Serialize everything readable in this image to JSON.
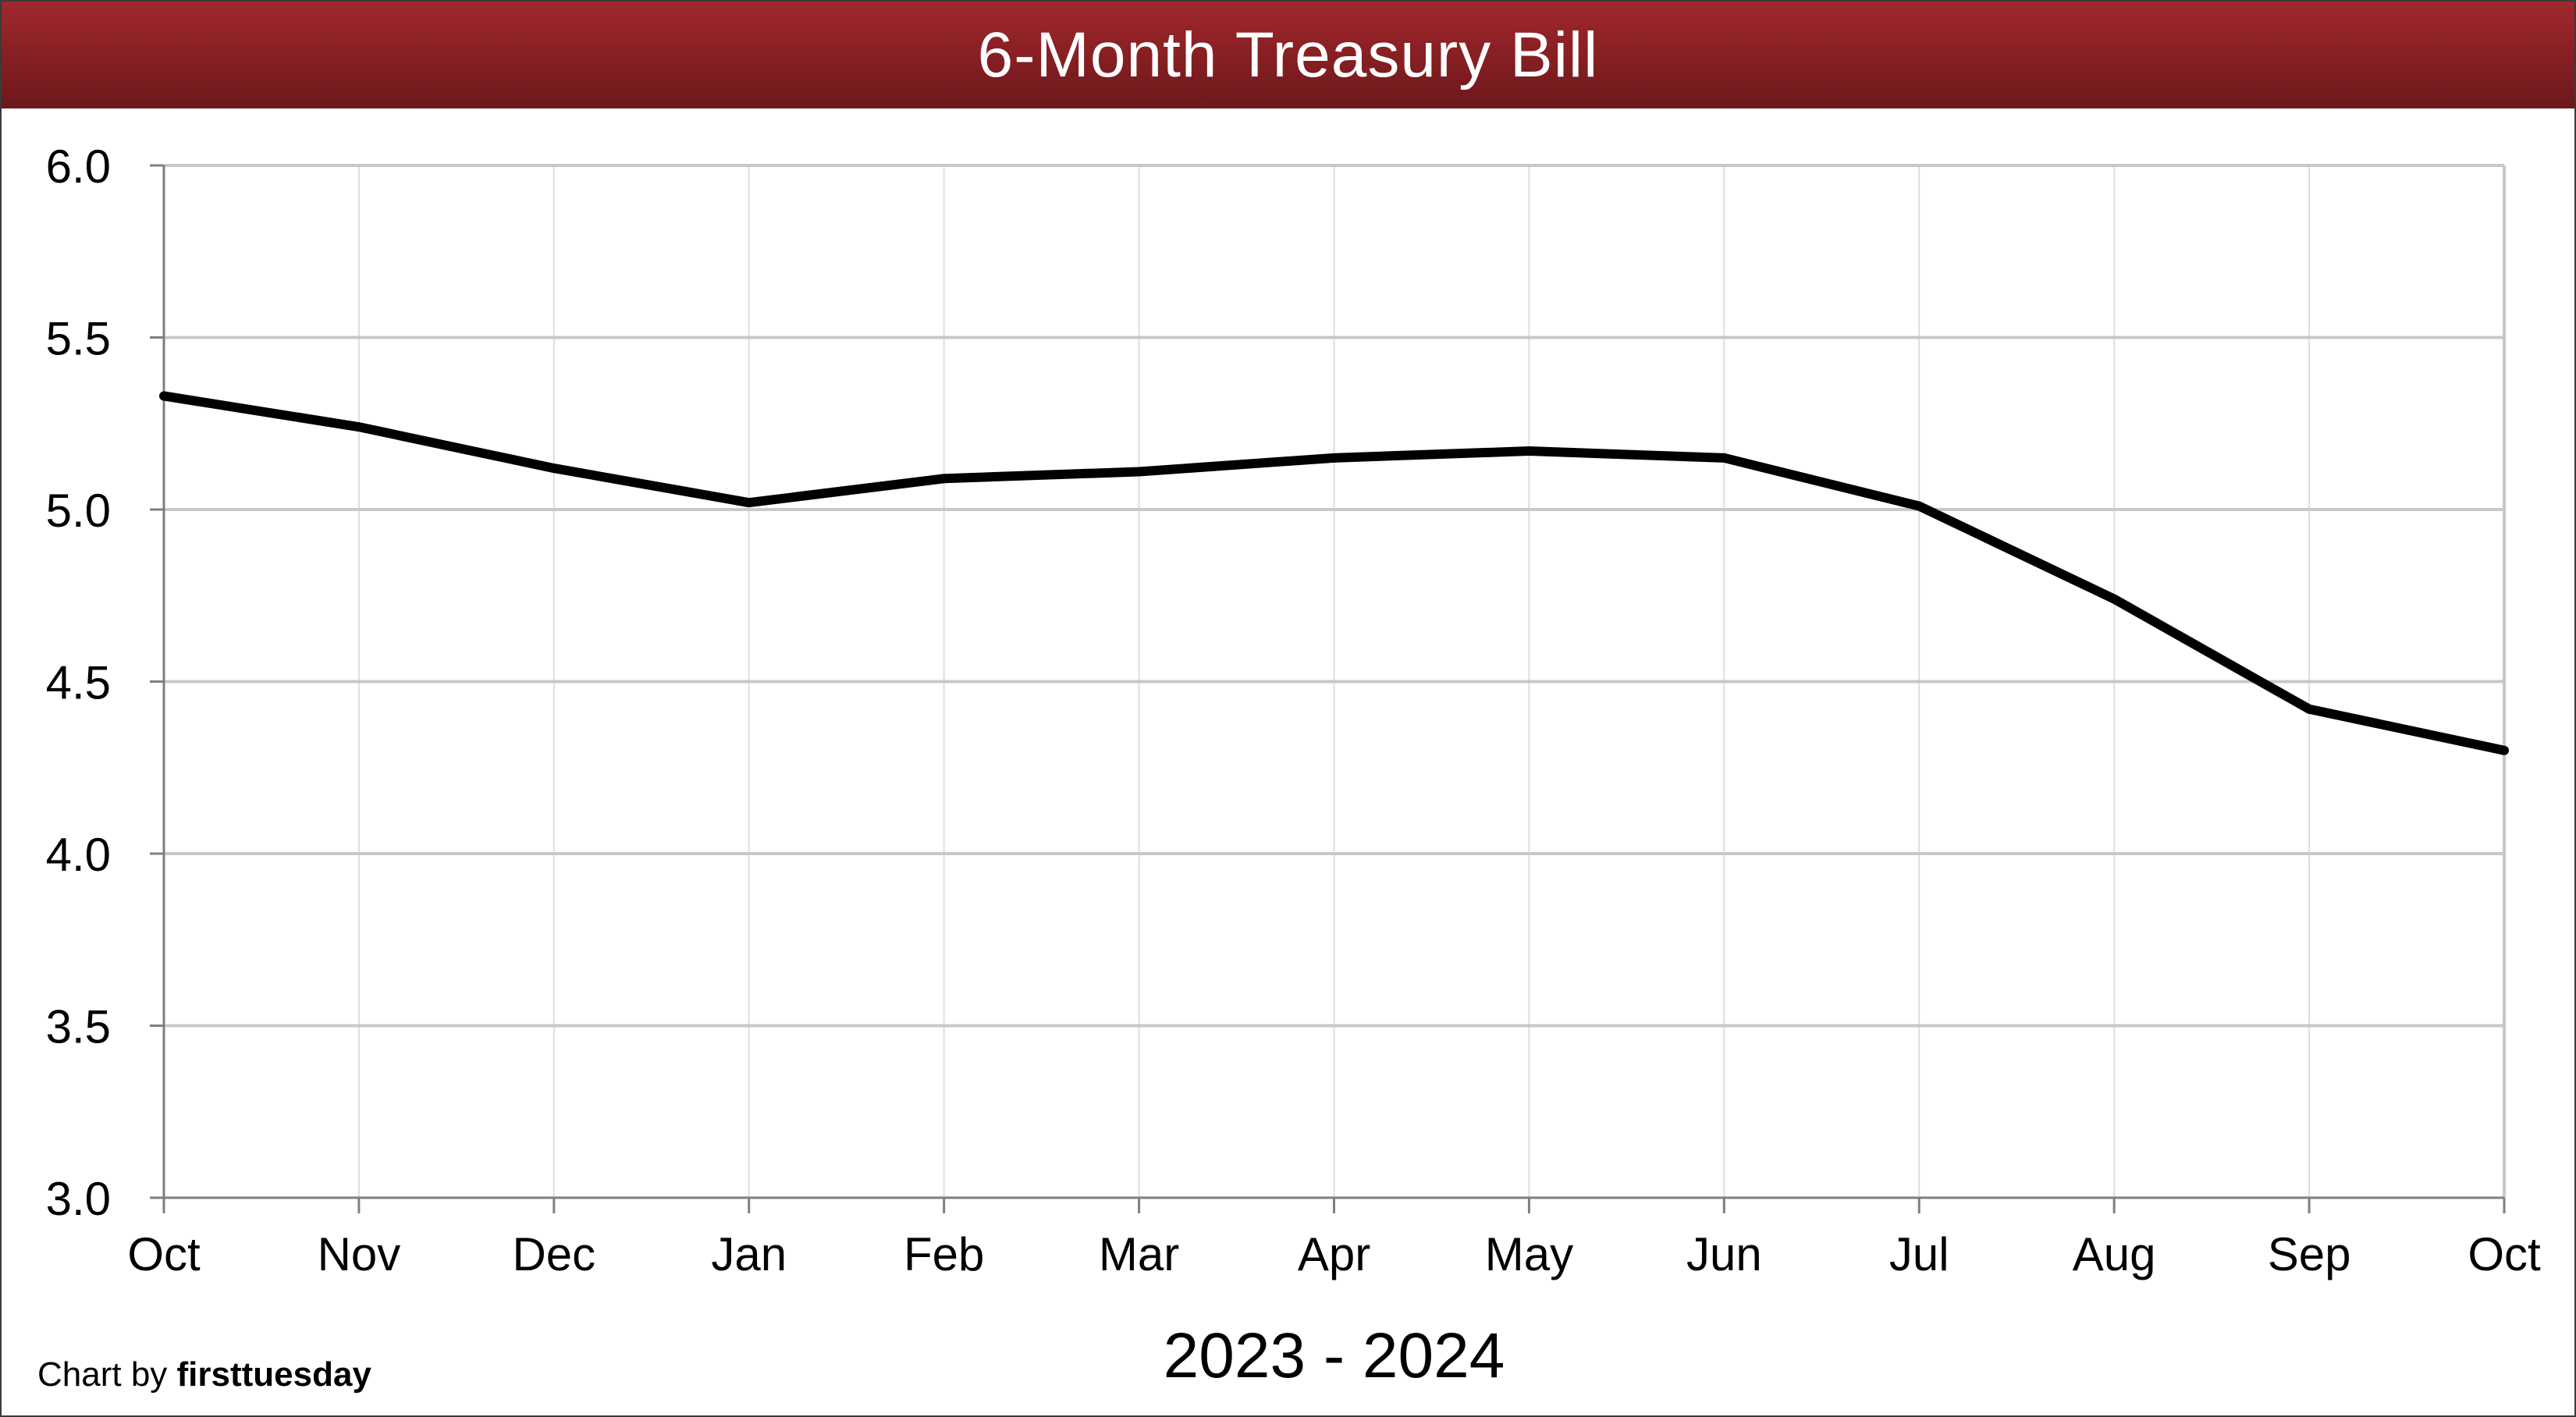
{
  "header": {
    "title": "6-Month Treasury Bill"
  },
  "footer": {
    "credit_prefix": "Chart by",
    "credit_brand": "firsttuesday"
  },
  "colors": {
    "title_bar": "#8a2024",
    "line": "#000000",
    "grid": "#c8c8c8"
  },
  "chart_data": {
    "type": "line",
    "title": "6-Month Treasury Bill",
    "xlabel": "2023 - 2024",
    "ylabel": "",
    "categories": [
      "Oct",
      "Nov",
      "Dec",
      "Jan",
      "Feb",
      "Mar",
      "Apr",
      "May",
      "Jun",
      "Jul",
      "Aug",
      "Sep",
      "Oct"
    ],
    "series": [
      {
        "values": [
          5.33,
          5.24,
          5.12,
          5.02,
          5.09,
          5.11,
          5.15,
          5.17,
          5.15,
          5.01,
          4.74,
          4.42,
          4.3
        ]
      }
    ],
    "ylim": [
      3.0,
      6.0
    ],
    "yticks": [
      "3.0",
      "3.5",
      "4.0",
      "4.5",
      "5.0",
      "5.5",
      "6.0"
    ],
    "grid": true,
    "legend": "none"
  }
}
